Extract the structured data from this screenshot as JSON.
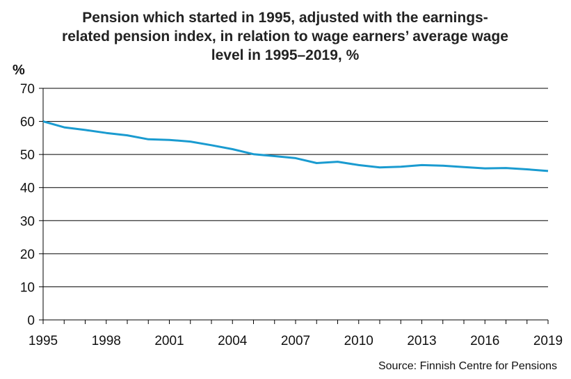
{
  "chart_data": {
    "type": "line",
    "title_lines": [
      "Pension which started in 1995, adjusted with the earnings-",
      "related pension index, in relation to wage earners’ average wage",
      "level in 1995–2019, %"
    ],
    "ylabel": "%",
    "xlabel": "",
    "source": "Source: Finnish Centre for Pensions",
    "ylim": [
      0,
      70
    ],
    "yticks": [
      0,
      10,
      20,
      30,
      40,
      50,
      60,
      70
    ],
    "xlim": [
      1995,
      2019
    ],
    "xticks": [
      1995,
      1998,
      2001,
      2004,
      2007,
      2010,
      2013,
      2016,
      2019
    ],
    "grid": true,
    "line_color": "#1a9bd0",
    "x": [
      1995,
      1996,
      1997,
      1998,
      1999,
      2000,
      2001,
      2002,
      2003,
      2004,
      2005,
      2006,
      2007,
      2008,
      2009,
      2010,
      2011,
      2012,
      2013,
      2014,
      2015,
      2016,
      2017,
      2018,
      2019
    ],
    "values": [
      60.0,
      58.2,
      57.4,
      56.5,
      55.8,
      54.6,
      54.4,
      53.9,
      52.8,
      51.6,
      50.1,
      49.5,
      48.9,
      47.4,
      47.8,
      46.8,
      46.1,
      46.3,
      46.8,
      46.6,
      46.2,
      45.8,
      45.9,
      45.5,
      45.0
    ]
  }
}
